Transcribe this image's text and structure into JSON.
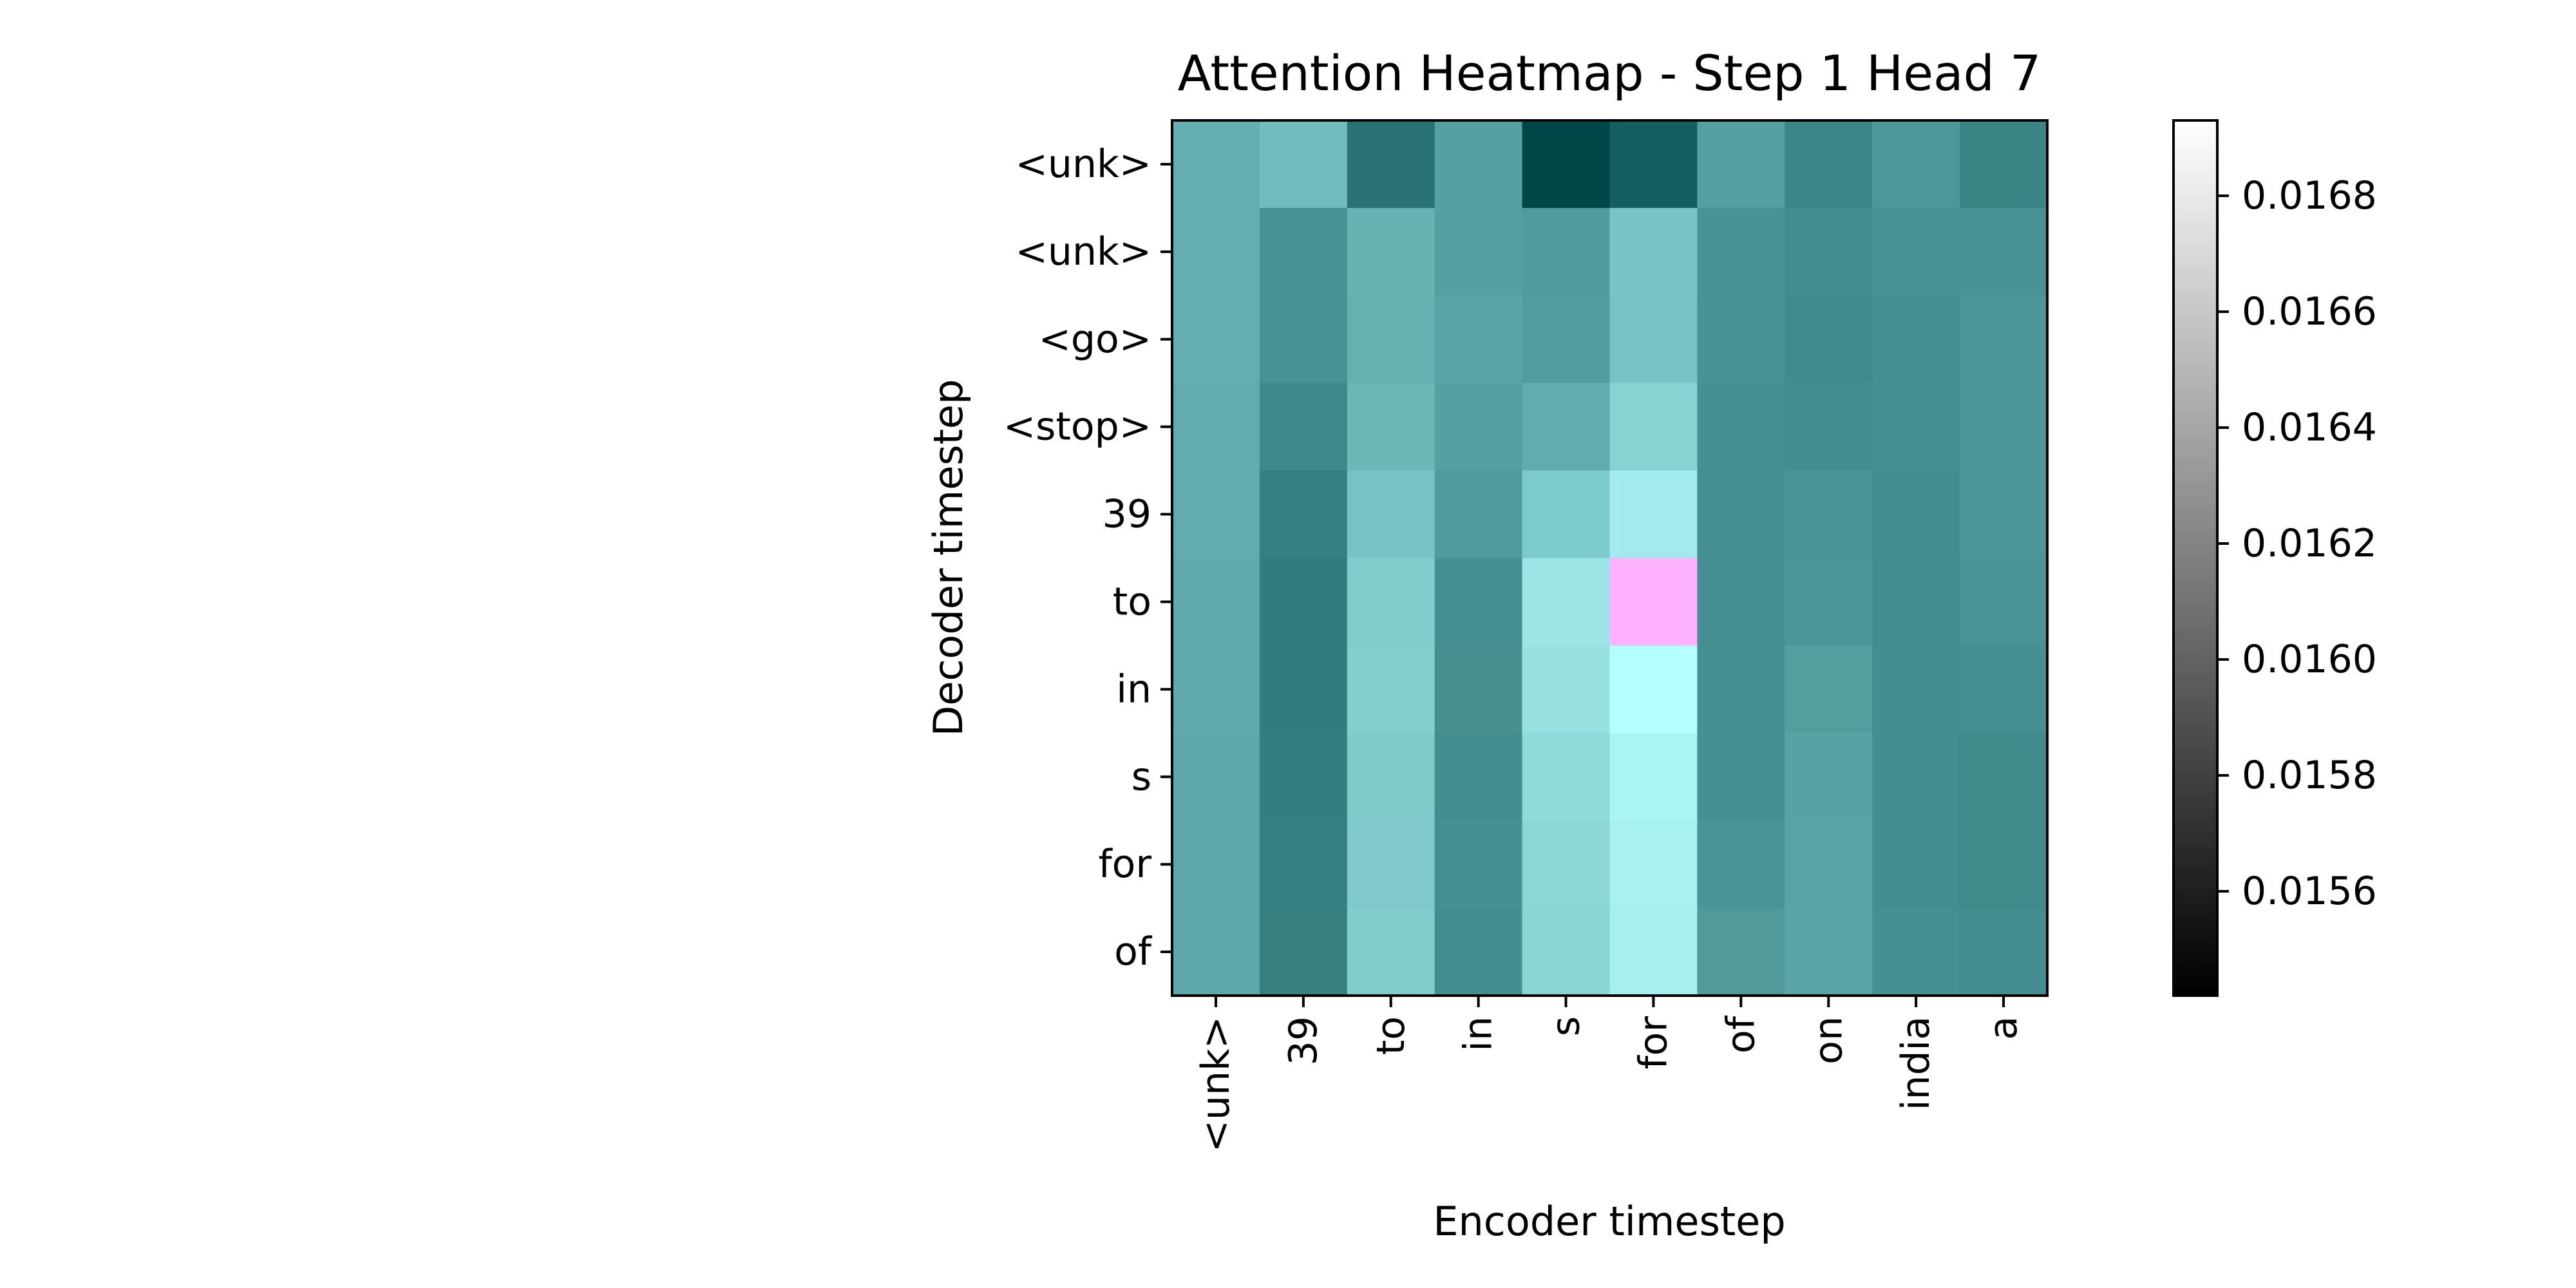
{
  "chart_data": {
    "type": "heatmap",
    "title": "Attention Heatmap - Step 1 Head 7",
    "xlabel": "Encoder timestep",
    "ylabel": "Decoder timestep",
    "x_categories": [
      "<unk>",
      "39",
      "to",
      "in",
      "s",
      "for",
      "of",
      "on",
      "india",
      "a"
    ],
    "y_categories": [
      "<unk>",
      "<unk>",
      "<go>",
      "<stop>",
      "39",
      "to",
      "in",
      "s",
      "for",
      "of"
    ],
    "values": [
      [
        0.01625,
        0.01635,
        0.0159,
        0.01618,
        0.01545,
        0.0157,
        0.01618,
        0.01605,
        0.01615,
        0.01602
      ],
      [
        0.01625,
        0.0161,
        0.01628,
        0.01618,
        0.01615,
        0.01638,
        0.0161,
        0.01608,
        0.0161,
        0.0161
      ],
      [
        0.01625,
        0.0161,
        0.01626,
        0.0162,
        0.01616,
        0.01635,
        0.0161,
        0.01607,
        0.0161,
        0.01612
      ],
      [
        0.01622,
        0.01605,
        0.0163,
        0.01618,
        0.01622,
        0.01645,
        0.0161,
        0.01608,
        0.0161,
        0.01612
      ],
      [
        0.01622,
        0.016,
        0.01635,
        0.01617,
        0.01638,
        0.0166,
        0.0161,
        0.0161,
        0.01608,
        0.01612
      ],
      [
        0.0162,
        0.01598,
        0.0164,
        0.0161,
        0.01655,
        0.01692,
        0.0161,
        0.01612,
        0.01608,
        0.0161
      ],
      [
        0.0162,
        0.01598,
        0.01642,
        0.01612,
        0.01653,
        0.0167,
        0.0161,
        0.01617,
        0.01608,
        0.01608
      ],
      [
        0.0162,
        0.016,
        0.0164,
        0.01612,
        0.01648,
        0.01665,
        0.0161,
        0.0162,
        0.01608,
        0.01605
      ],
      [
        0.0162,
        0.016,
        0.01638,
        0.0161,
        0.01645,
        0.01662,
        0.01612,
        0.0162,
        0.01608,
        0.01605
      ],
      [
        0.0162,
        0.016,
        0.01638,
        0.0161,
        0.01643,
        0.0166,
        0.01615,
        0.0162,
        0.01608,
        0.01608
      ]
    ],
    "colorbar": {
      "range": [
        0.01542,
        0.01693
      ],
      "ticks": [
        0.0156,
        0.0158,
        0.016,
        0.0162,
        0.0164,
        0.0166,
        0.0168
      ],
      "tick_labels": [
        "0.0156",
        "0.0158",
        "0.0160",
        "0.0162",
        "0.0164",
        "0.0166",
        "0.0168"
      ],
      "colormap": "gray"
    },
    "cell_colors": [
      [
        "#64aeb1",
        "#72bcbf",
        "#2a7275",
        "#55a0a2",
        "#004648",
        "#145e61",
        "#55a0a2",
        "#3c8689",
        "#4e989b",
        "#3a8486"
      ],
      [
        "#64aeb1",
        "#489295",
        "#68b2b4",
        "#56a0a3",
        "#519b9e",
        "#7ac4c7",
        "#489295",
        "#448e91",
        "#489295",
        "#489295"
      ],
      [
        "#64aeb1",
        "#489295",
        "#66b0b2",
        "#5aa4a7",
        "#529c9f",
        "#78c2c5",
        "#489295",
        "#418b8e",
        "#468f92",
        "#4c9699"
      ],
      [
        "#62acaf",
        "#3e878a",
        "#6cb6b8",
        "#56a0a3",
        "#62acaf",
        "#88d2d4",
        "#468f92",
        "#448e91",
        "#468f92",
        "#4c9699"
      ],
      [
        "#62acaf",
        "#367f82",
        "#78c2c5",
        "#519b9e",
        "#7ccbcd",
        "#a2eaed",
        "#468f92",
        "#4a9497",
        "#448e91",
        "#4c9699"
      ],
      [
        "#60aaad",
        "#327b7e",
        "#82ccce",
        "#468f92",
        "#9ce4e6",
        "#feb2fe",
        "#468f92",
        "#4c9699",
        "#448e91",
        "#4a9497"
      ],
      [
        "#60aaad",
        "#327b7e",
        "#84ced0",
        "#488f92",
        "#98e0e2",
        "#b4ffff",
        "#468f92",
        "#549ea0",
        "#448e91",
        "#468f92"
      ],
      [
        "#5ea8ab",
        "#347d80",
        "#80caca",
        "#448e91",
        "#8edbdc",
        "#aaf4f6",
        "#468f92",
        "#58a2a5",
        "#448e91",
        "#408a8c"
      ],
      [
        "#5ea8ab",
        "#367f82",
        "#80c8cb",
        "#468f92",
        "#8cd6d8",
        "#a8f0f2",
        "#4a9497",
        "#5aa4a7",
        "#448e91",
        "#408a8c"
      ],
      [
        "#5ea8ab",
        "#387f82",
        "#82cccc",
        "#448e91",
        "#8ad6d6",
        "#a6eef0",
        "#52999c",
        "#5aa4a7",
        "#468f92",
        "#438c8f"
      ]
    ]
  }
}
